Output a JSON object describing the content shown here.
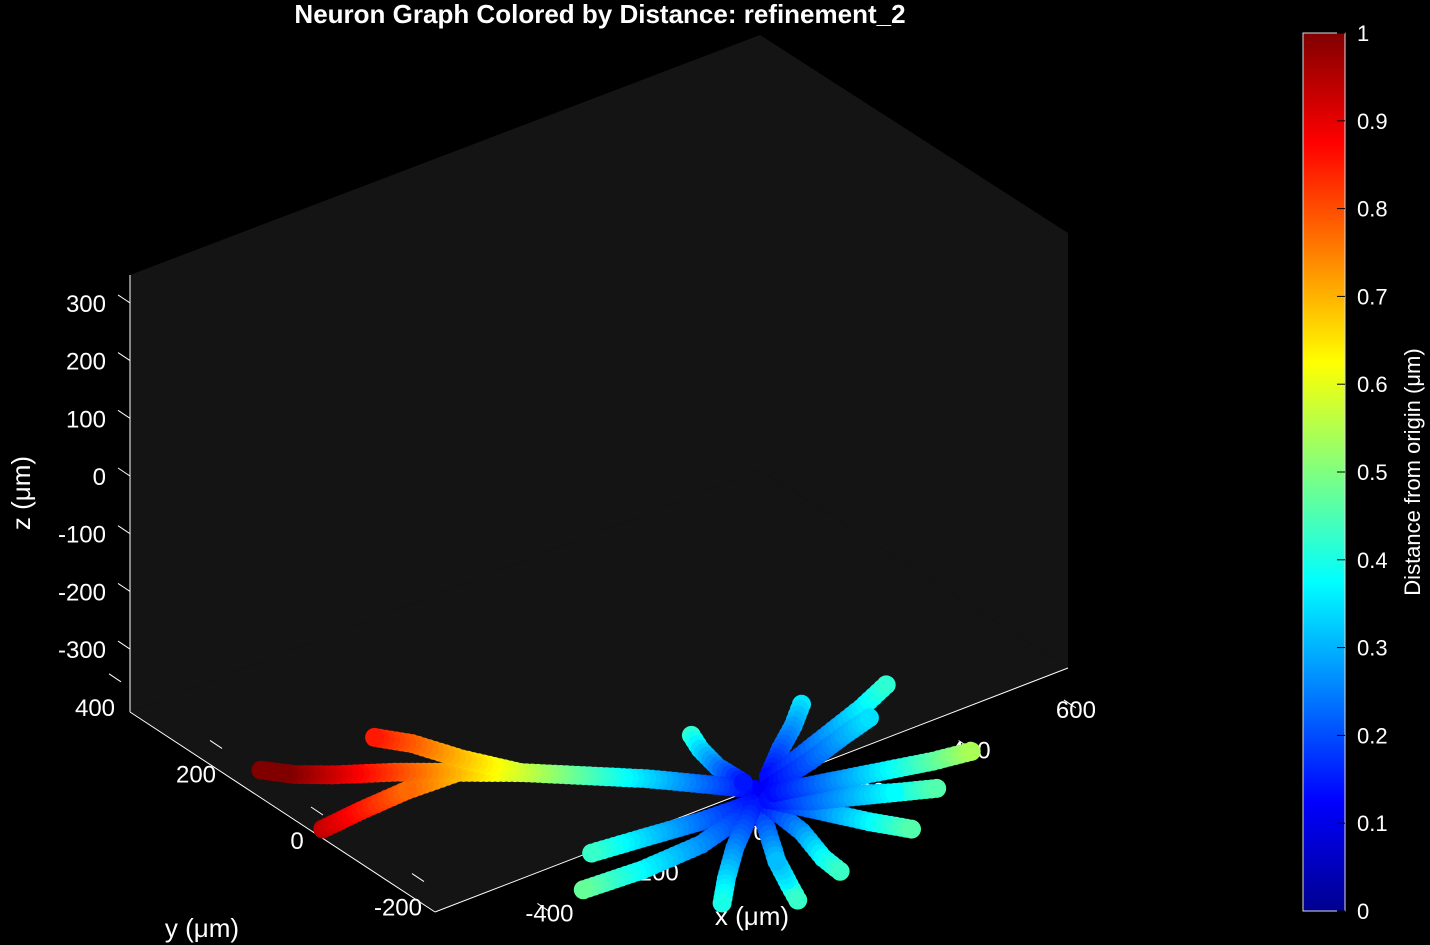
{
  "chart_data": {
    "type": "scatter",
    "title": "Neuron Graph Colored by Distance: refinement_2",
    "xlabel": "x  (μm)",
    "ylabel": "y  (μm)",
    "zlabel": "z  (μm)",
    "x_ticks": [
      "-400",
      "-200",
      "0",
      "200",
      "400",
      "600"
    ],
    "y_ticks": [
      "-200",
      "0",
      "200",
      "400"
    ],
    "z_ticks": [
      "300",
      "200",
      "100",
      "0",
      "-100",
      "-200",
      "-300"
    ],
    "colorbar": {
      "label": "Distance  from  origin  (μm)",
      "ticks": [
        "1",
        "0.9",
        "0.8",
        "0.7",
        "0.6",
        "0.5",
        "0.4",
        "0.3",
        "0.2",
        "0.1",
        "0"
      ],
      "colormap": "jet",
      "range": [
        0,
        1
      ]
    },
    "background": "#141414",
    "branches": [
      [
        [
          0,
          0,
          0
        ],
        [
          -60,
          0,
          30
        ],
        [
          -130,
          5,
          60
        ],
        [
          -200,
          10,
          85
        ],
        [
          -270,
          15,
          110
        ],
        [
          -340,
          20,
          130
        ],
        [
          -410,
          25,
          150
        ],
        [
          -480,
          30,
          165
        ]
      ],
      [
        [
          -270,
          15,
          110
        ],
        [
          -330,
          25,
          145
        ],
        [
          -380,
          35,
          180
        ],
        [
          -420,
          40,
          200
        ]
      ],
      [
        [
          -340,
          20,
          130
        ],
        [
          -400,
          20,
          120
        ],
        [
          -460,
          15,
          110
        ],
        [
          -510,
          10,
          100
        ]
      ],
      [
        [
          -480,
          30,
          165
        ],
        [
          -520,
          35,
          175
        ],
        [
          -555,
          40,
          190
        ]
      ],
      [
        [
          -20,
          0,
          20
        ],
        [
          -60,
          -10,
          70
        ],
        [
          -90,
          -20,
          120
        ],
        [
          -110,
          -30,
          160
        ]
      ],
      [
        [
          10,
          0,
          20
        ],
        [
          20,
          -5,
          70
        ],
        [
          30,
          -10,
          110
        ],
        [
          35,
          -15,
          150
        ]
      ],
      [
        [
          20,
          0,
          20
        ],
        [
          70,
          0,
          60
        ],
        [
          120,
          0,
          100
        ],
        [
          150,
          0,
          130
        ]
      ],
      [
        [
          10,
          0,
          -10
        ],
        [
          80,
          5,
          -20
        ],
        [
          150,
          10,
          -30
        ],
        [
          220,
          15,
          -40
        ],
        [
          270,
          20,
          -45
        ]
      ],
      [
        [
          10,
          0,
          0
        ],
        [
          60,
          0,
          30
        ],
        [
          100,
          0,
          60
        ],
        [
          130,
          0,
          80
        ]
      ],
      [
        [
          -10,
          0,
          -20
        ],
        [
          -70,
          0,
          -30
        ],
        [
          -140,
          0,
          -35
        ],
        [
          -200,
          0,
          -40
        ]
      ],
      [
        [
          -10,
          0,
          -30
        ],
        [
          -70,
          0,
          -70
        ],
        [
          -140,
          0,
          -90
        ],
        [
          -210,
          0,
          -100
        ]
      ],
      [
        [
          0,
          0,
          -30
        ],
        [
          10,
          0,
          -80
        ],
        [
          20,
          0,
          -130
        ],
        [
          30,
          -5,
          -170
        ],
        [
          40,
          -5,
          -200
        ]
      ],
      [
        [
          10,
          0,
          -30
        ],
        [
          50,
          0,
          -90
        ],
        [
          80,
          5,
          -150
        ],
        [
          100,
          5,
          -180
        ]
      ],
      [
        [
          10,
          0,
          -20
        ],
        [
          70,
          0,
          -60
        ],
        [
          130,
          0,
          -100
        ],
        [
          180,
          0,
          -130
        ]
      ],
      [
        [
          10,
          0,
          -20
        ],
        [
          90,
          0,
          -40
        ],
        [
          160,
          0,
          -60
        ],
        [
          210,
          0,
          -70
        ]
      ],
      [
        [
          -10,
          0,
          -30
        ],
        [
          -30,
          0,
          -90
        ],
        [
          -40,
          0,
          -140
        ],
        [
          -45,
          0,
          -180
        ]
      ],
      [
        [
          10,
          0,
          -20
        ],
        [
          60,
          0,
          -40
        ],
        [
          110,
          0,
          -50
        ],
        [
          160,
          0,
          -60
        ]
      ]
    ]
  }
}
